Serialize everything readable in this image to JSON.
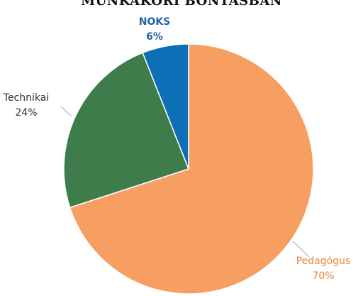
{
  "chart_data": {
    "type": "pie",
    "title": "MUNKAKÖRI BONTÁSBAN",
    "start_angle_deg": 0,
    "direction": "clockwise",
    "slices": [
      {
        "label": "Pedagógus",
        "value": 70,
        "value_label": "70%",
        "color": "#F79F62",
        "label_color": "#E8843B"
      },
      {
        "label": "Technikai",
        "value": 24,
        "value_label": "24%",
        "color": "#3E7C4B",
        "label_color": "#333333"
      },
      {
        "label": "NOKS",
        "value": 6,
        "value_label": "6%",
        "color": "#0D6FB5",
        "label_color": "#1F63A8"
      }
    ]
  }
}
